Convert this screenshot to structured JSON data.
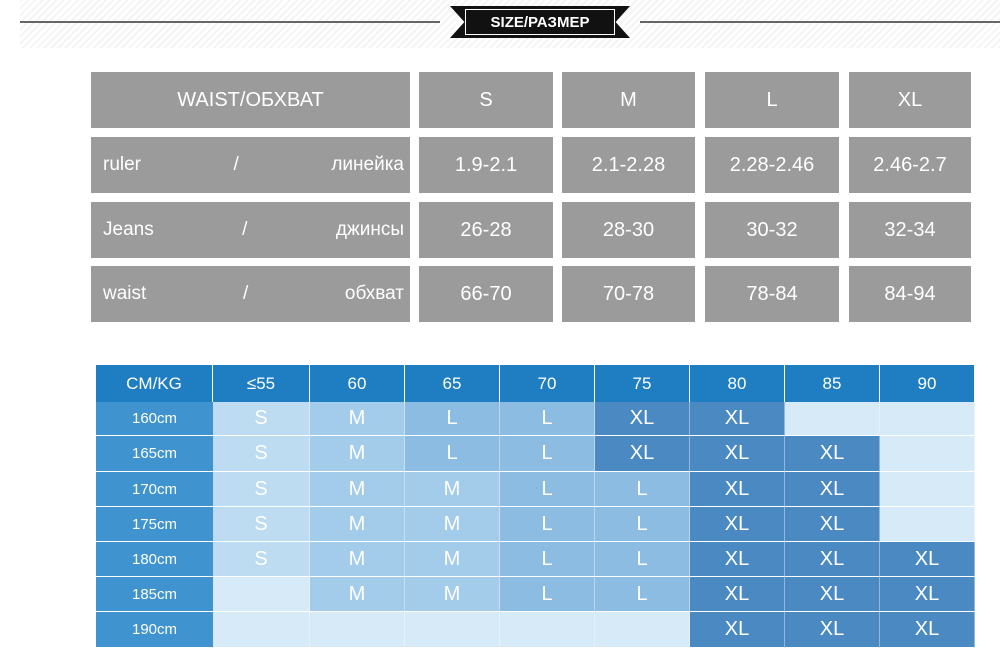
{
  "header": {
    "title": "SIZE/РАЗМЕР"
  },
  "waist_table": {
    "header": [
      "WAIST/ОБХВАТ",
      "S",
      "M",
      "L",
      "XL"
    ],
    "rows": [
      [
        [
          "ruler",
          "/",
          "линейка"
        ],
        "1.9-2.1",
        "2.1-2.28",
        "2.28-2.46",
        "2.46-2.7"
      ],
      [
        [
          "Jeans",
          "/",
          "джинсы"
        ],
        "26-28",
        "28-30",
        "30-32",
        "32-34"
      ],
      [
        [
          "waist",
          "/",
          "обхват"
        ],
        "66-70",
        "70-78",
        "78-84",
        "84-94"
      ]
    ]
  },
  "size_table": {
    "header": [
      "CM/KG",
      "≤55",
      "60",
      "65",
      "70",
      "75",
      "80",
      "85",
      "90"
    ],
    "rows": [
      [
        "160cm",
        "S",
        "M",
        "L",
        "L",
        "XL",
        "XL",
        null,
        null
      ],
      [
        "165cm",
        "S",
        "M",
        "L",
        "L",
        "XL",
        "XL",
        "XL",
        null
      ],
      [
        "170cm",
        "S",
        "M",
        "M",
        "L",
        "L",
        "XL",
        "XL",
        null
      ],
      [
        "175cm",
        "S",
        "M",
        "M",
        "L",
        "L",
        "XL",
        "XL",
        null
      ],
      [
        "180cm",
        "S",
        "M",
        "M",
        "L",
        "L",
        "XL",
        "XL",
        "XL"
      ],
      [
        "185cm",
        null,
        "M",
        "M",
        "L",
        "L",
        "XL",
        "XL",
        "XL"
      ],
      [
        "190cm",
        null,
        null,
        null,
        null,
        null,
        "XL",
        "XL",
        "XL"
      ]
    ]
  }
}
